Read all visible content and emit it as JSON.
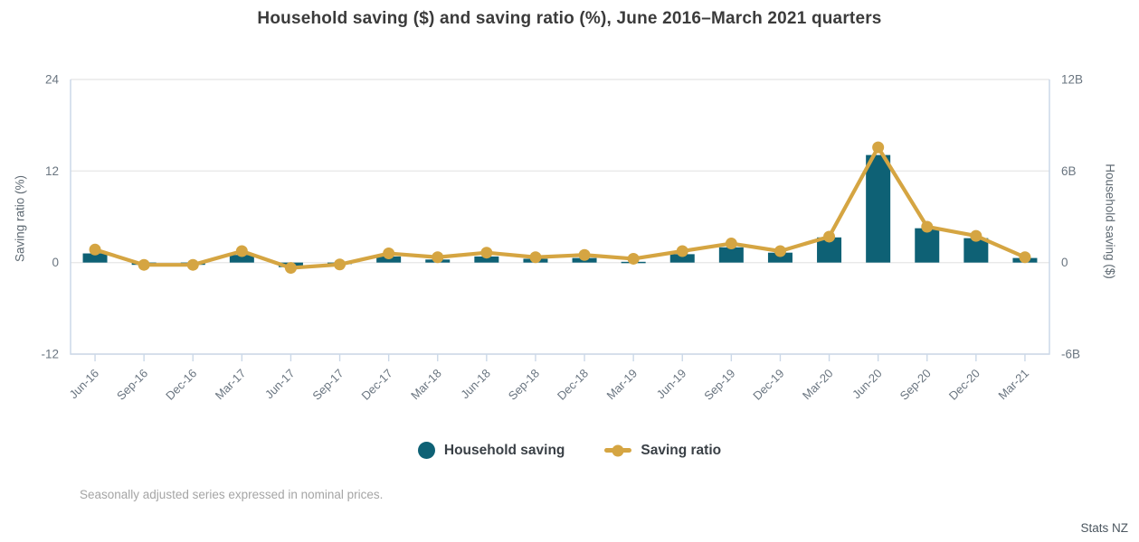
{
  "chart": {
    "title": "Household saving ($) and saving ratio (%), June 2016–March 2021 quarters",
    "footnote": "Seasonally adjusted series expressed in nominal prices.",
    "source": "Stats NZ",
    "legend": [
      {
        "label": "Household saving",
        "marker": "circle"
      },
      {
        "label": "Saving ratio",
        "marker": "line-dot"
      }
    ]
  },
  "chart_data": {
    "type": "bar+line (dual axis)",
    "title": "Household saving ($) and saving ratio (%), June 2016–March 2021 quarters",
    "categories": [
      "Jun-16",
      "Sep-16",
      "Dec-16",
      "Mar-17",
      "Jun-17",
      "Sep-17",
      "Dec-17",
      "Mar-18",
      "Jun-18",
      "Sep-18",
      "Dec-18",
      "Mar-19",
      "Jun-19",
      "Sep-19",
      "Dec-19",
      "Mar-20",
      "Jun-20",
      "Sep-20",
      "Dec-20",
      "Mar-21"
    ],
    "series": [
      {
        "name": "Household saving",
        "type": "bar",
        "axis": "right",
        "unit": "billions $",
        "values": [
          0.6,
          -0.15,
          -0.15,
          0.5,
          -0.3,
          -0.1,
          0.4,
          0.2,
          0.4,
          0.25,
          0.3,
          0.05,
          0.55,
          1.0,
          0.65,
          1.65,
          7.05,
          2.25,
          1.6,
          0.3
        ]
      },
      {
        "name": "Saving ratio",
        "type": "line",
        "axis": "left",
        "unit": "%",
        "values": [
          1.7,
          -0.3,
          -0.3,
          1.5,
          -0.7,
          -0.25,
          1.2,
          0.7,
          1.3,
          0.7,
          1.0,
          0.5,
          1.5,
          2.5,
          1.5,
          3.4,
          15.1,
          4.7,
          3.5,
          0.7
        ]
      }
    ],
    "left_axis": {
      "title": "Saving ratio (%)",
      "min": -12,
      "max": 24,
      "ticks": [
        {
          "value": 24,
          "label": "24"
        },
        {
          "value": 12,
          "label": "12"
        },
        {
          "value": 0,
          "label": "0"
        },
        {
          "value": -12,
          "label": "-12"
        }
      ]
    },
    "right_axis": {
      "title": "Household saving ($)",
      "min": -6,
      "max": 12,
      "ticks": [
        {
          "value": 12,
          "label": "12B"
        },
        {
          "value": 6,
          "label": "6B"
        },
        {
          "value": 0,
          "label": "0"
        },
        {
          "value": -6,
          "label": "-6B"
        }
      ]
    },
    "grid": "horizontal only",
    "legend_position": "bottom center"
  },
  "colors": {
    "bar": "#0e6175",
    "line": "#d5a542",
    "grid": "#e9e9e9",
    "frame": "#cbd8e8",
    "tick_text": "#6a7580",
    "title_text": "#3b3b3b"
  }
}
